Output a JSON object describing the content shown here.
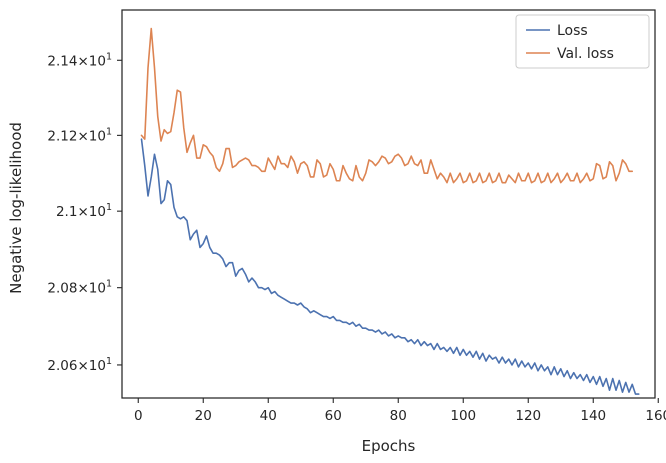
{
  "chart_data": {
    "type": "line",
    "title": "",
    "xlabel": "Epochs",
    "ylabel": "Negative log-likelihood",
    "xlim": [
      -5,
      159
    ],
    "ylim": [
      20.515,
      21.535
    ],
    "yscale": "log",
    "grid": false,
    "legend_position": "top-right",
    "x_ticks": [
      {
        "value": 0,
        "label": "0"
      },
      {
        "value": 20,
        "label": "20"
      },
      {
        "value": 40,
        "label": "40"
      },
      {
        "value": 60,
        "label": "60"
      },
      {
        "value": 80,
        "label": "80"
      },
      {
        "value": 100,
        "label": "100"
      },
      {
        "value": 120,
        "label": "120"
      },
      {
        "value": 140,
        "label": "140"
      },
      {
        "value": 160,
        "label": "160"
      }
    ],
    "y_ticks": [
      {
        "value": 20.6,
        "mantissa": "2.06",
        "times": "×",
        "base": "10",
        "exp": "1"
      },
      {
        "value": 20.8,
        "mantissa": "2.08",
        "times": "×",
        "base": "10",
        "exp": "1"
      },
      {
        "value": 21.0,
        "mantissa": "2.1",
        "times": "×",
        "base": "10",
        "exp": "1"
      },
      {
        "value": 21.2,
        "mantissa": "2.12",
        "times": "×",
        "base": "10",
        "exp": "1"
      },
      {
        "value": 21.4,
        "mantissa": "2.14",
        "times": "×",
        "base": "10",
        "exp": "1"
      }
    ],
    "series": [
      {
        "name": "Loss",
        "color": "#4c72b0",
        "x_start": 1,
        "values": [
          21.19,
          21.12,
          21.04,
          21.09,
          21.15,
          21.11,
          21.02,
          21.03,
          21.08,
          21.07,
          21.01,
          20.985,
          20.98,
          20.985,
          20.975,
          20.925,
          20.94,
          20.95,
          20.905,
          20.915,
          20.935,
          20.905,
          20.89,
          20.89,
          20.885,
          20.875,
          20.855,
          20.865,
          20.865,
          20.83,
          20.845,
          20.85,
          20.835,
          20.815,
          20.825,
          20.815,
          20.8,
          20.8,
          20.795,
          20.8,
          20.785,
          20.79,
          20.78,
          20.775,
          20.77,
          20.765,
          20.76,
          20.76,
          20.755,
          20.76,
          20.75,
          20.745,
          20.735,
          20.74,
          20.735,
          20.73,
          20.725,
          20.725,
          20.72,
          20.725,
          20.715,
          20.715,
          20.71,
          20.71,
          20.705,
          20.71,
          20.7,
          20.705,
          20.695,
          20.695,
          20.69,
          20.69,
          20.685,
          20.69,
          20.68,
          20.685,
          20.675,
          20.68,
          20.67,
          20.675,
          20.67,
          20.67,
          20.66,
          20.665,
          20.655,
          20.665,
          20.65,
          20.66,
          20.65,
          20.655,
          20.64,
          20.655,
          20.64,
          20.645,
          20.635,
          20.645,
          20.63,
          20.645,
          20.625,
          20.64,
          20.625,
          20.635,
          20.62,
          20.635,
          20.615,
          20.63,
          20.61,
          20.625,
          20.615,
          20.62,
          20.605,
          20.62,
          20.605,
          20.615,
          20.6,
          20.615,
          20.595,
          20.61,
          20.595,
          20.605,
          20.59,
          20.605,
          20.585,
          20.6,
          20.585,
          20.595,
          20.575,
          20.595,
          20.575,
          20.59,
          20.57,
          20.585,
          20.565,
          20.58,
          20.565,
          20.575,
          20.56,
          20.575,
          20.555,
          20.57,
          20.55,
          20.57,
          20.545,
          20.565,
          20.535,
          20.565,
          20.535,
          20.56,
          20.53,
          20.555,
          20.53,
          20.55,
          20.525,
          20.525
        ]
      },
      {
        "name": "Val. loss",
        "color": "#dd8452",
        "x_start": 1,
        "values": [
          21.2,
          21.19,
          21.38,
          21.485,
          21.38,
          21.25,
          21.185,
          21.215,
          21.205,
          21.21,
          21.26,
          21.32,
          21.315,
          21.22,
          21.155,
          21.18,
          21.2,
          21.14,
          21.14,
          21.175,
          21.17,
          21.155,
          21.145,
          21.115,
          21.105,
          21.125,
          21.165,
          21.165,
          21.115,
          21.12,
          21.13,
          21.135,
          21.14,
          21.135,
          21.12,
          21.12,
          21.115,
          21.105,
          21.105,
          21.14,
          21.125,
          21.11,
          21.145,
          21.125,
          21.125,
          21.115,
          21.145,
          21.13,
          21.1,
          21.125,
          21.13,
          21.12,
          21.09,
          21.09,
          21.135,
          21.125,
          21.09,
          21.095,
          21.125,
          21.11,
          21.08,
          21.08,
          21.12,
          21.1,
          21.085,
          21.08,
          21.12,
          21.09,
          21.08,
          21.1,
          21.135,
          21.13,
          21.12,
          21.13,
          21.145,
          21.14,
          21.125,
          21.13,
          21.145,
          21.15,
          21.14,
          21.12,
          21.125,
          21.145,
          21.125,
          21.12,
          21.135,
          21.1,
          21.1,
          21.135,
          21.11,
          21.085,
          21.1,
          21.09,
          21.075,
          21.1,
          21.075,
          21.085,
          21.1,
          21.075,
          21.08,
          21.1,
          21.075,
          21.08,
          21.1,
          21.075,
          21.08,
          21.1,
          21.075,
          21.08,
          21.1,
          21.075,
          21.075,
          21.095,
          21.085,
          21.075,
          21.1,
          21.08,
          21.08,
          21.1,
          21.075,
          21.08,
          21.1,
          21.075,
          21.08,
          21.1,
          21.075,
          21.085,
          21.1,
          21.075,
          21.085,
          21.1,
          21.08,
          21.08,
          21.1,
          21.075,
          21.085,
          21.1,
          21.08,
          21.085,
          21.125,
          21.12,
          21.085,
          21.09,
          21.13,
          21.12,
          21.08,
          21.1,
          21.135,
          21.125,
          21.105,
          21.105
        ]
      }
    ]
  }
}
